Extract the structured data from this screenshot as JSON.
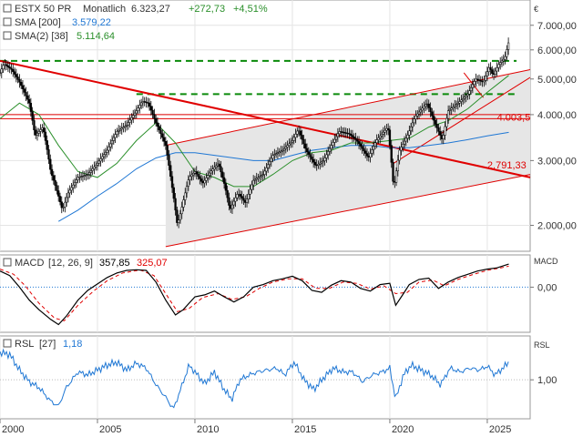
{
  "colors": {
    "price": "#000000",
    "sma200": "#1f77d4",
    "sma38": "#2a8f2a",
    "trend": "#e00000",
    "support": "#0a8a0a",
    "macd": "#000000",
    "signal": "#e00000",
    "rsl": "#1f77d4",
    "pos": "#2a8f2a",
    "neg": "#e00000"
  },
  "chart_data": [
    {
      "type": "candlestick",
      "title": "ESTX 50 PR",
      "period": "Monatlich",
      "last": "6.323,27",
      "change": "+272,73",
      "change_pct": "+4,51%",
      "currency": "€",
      "log_scale": true,
      "ylim": [
        1700,
        8200
      ],
      "x_range": [
        2000.0,
        2027.2
      ],
      "x_ticks": [
        "2000",
        "2005",
        "2010",
        "2015",
        "2020",
        "2025"
      ],
      "y_ticks": [
        "7.000,00",
        "6.000,00",
        "5.000,00",
        "4.000,00",
        "3.000,00",
        "2.000,00"
      ],
      "y_tick_values": [
        7000,
        6000,
        5000,
        4000,
        3000,
        2000
      ],
      "price_path": [
        [
          2000.0,
          5200
        ],
        [
          2000.2,
          5500
        ],
        [
          2000.6,
          5300
        ],
        [
          2001.0,
          4900
        ],
        [
          2001.5,
          4300
        ],
        [
          2001.8,
          3500
        ],
        [
          2002.2,
          3700
        ],
        [
          2002.6,
          2800
        ],
        [
          2002.9,
          2500
        ],
        [
          2003.2,
          2200
        ],
        [
          2003.5,
          2450
        ],
        [
          2004.0,
          2700
        ],
        [
          2004.5,
          2750
        ],
        [
          2005.0,
          2950
        ],
        [
          2005.5,
          3200
        ],
        [
          2006.0,
          3600
        ],
        [
          2006.5,
          3750
        ],
        [
          2007.0,
          4100
        ],
        [
          2007.3,
          4350
        ],
        [
          2007.6,
          4300
        ],
        [
          2008.0,
          3800
        ],
        [
          2008.5,
          3300
        ],
        [
          2008.8,
          2600
        ],
        [
          2009.1,
          2000
        ],
        [
          2009.3,
          2200
        ],
        [
          2009.7,
          2700
        ],
        [
          2010.0,
          2800
        ],
        [
          2010.4,
          2600
        ],
        [
          2010.8,
          2800
        ],
        [
          2011.2,
          2950
        ],
        [
          2011.5,
          2600
        ],
        [
          2011.8,
          2200
        ],
        [
          2012.2,
          2450
        ],
        [
          2012.6,
          2300
        ],
        [
          2013.0,
          2650
        ],
        [
          2013.5,
          2750
        ],
        [
          2014.0,
          3100
        ],
        [
          2014.5,
          3200
        ],
        [
          2015.0,
          3400
        ],
        [
          2015.3,
          3650
        ],
        [
          2015.7,
          3200
        ],
        [
          2016.2,
          2900
        ],
        [
          2016.6,
          3000
        ],
        [
          2017.0,
          3300
        ],
        [
          2017.4,
          3600
        ],
        [
          2017.9,
          3550
        ],
        [
          2018.3,
          3400
        ],
        [
          2018.9,
          3050
        ],
        [
          2019.3,
          3400
        ],
        [
          2019.9,
          3700
        ],
        [
          2020.2,
          2500
        ],
        [
          2020.5,
          3200
        ],
        [
          2020.9,
          3500
        ],
        [
          2021.3,
          3950
        ],
        [
          2021.9,
          4300
        ],
        [
          2022.3,
          3800
        ],
        [
          2022.7,
          3400
        ],
        [
          2023.0,
          4100
        ],
        [
          2023.5,
          4300
        ],
        [
          2024.0,
          4550
        ],
        [
          2024.4,
          5000
        ],
        [
          2024.8,
          4900
        ],
        [
          2025.1,
          5400
        ],
        [
          2025.3,
          5100
        ],
        [
          2025.6,
          5500
        ],
        [
          2025.9,
          5700
        ],
        [
          2026.1,
          6323
        ]
      ],
      "sma200": {
        "name": "SMA [200]",
        "last": "3.579,22",
        "points": [
          [
            2003.0,
            2050
          ],
          [
            2004.0,
            2200
          ],
          [
            2005.0,
            2400
          ],
          [
            2006.0,
            2600
          ],
          [
            2007.0,
            2850
          ],
          [
            2008.0,
            3050
          ],
          [
            2009.0,
            3150
          ],
          [
            2010.0,
            3150
          ],
          [
            2011.0,
            3100
          ],
          [
            2012.0,
            3050
          ],
          [
            2013.0,
            3000
          ],
          [
            2014.0,
            3000
          ],
          [
            2015.0,
            3100
          ],
          [
            2016.0,
            3200
          ],
          [
            2017.0,
            3250
          ],
          [
            2018.0,
            3300
          ],
          [
            2019.0,
            3300
          ],
          [
            2020.0,
            3250
          ],
          [
            2021.0,
            3250
          ],
          [
            2022.0,
            3300
          ],
          [
            2023.0,
            3350
          ],
          [
            2024.0,
            3420
          ],
          [
            2025.0,
            3500
          ],
          [
            2026.1,
            3579
          ]
        ]
      },
      "sma38": {
        "name": "SMA(2) [38]",
        "last": "5.114,64",
        "points": [
          [
            2000.0,
            3900
          ],
          [
            2001.0,
            4300
          ],
          [
            2002.0,
            4000
          ],
          [
            2003.0,
            3300
          ],
          [
            2004.0,
            2800
          ],
          [
            2005.0,
            2700
          ],
          [
            2006.0,
            2950
          ],
          [
            2007.0,
            3400
          ],
          [
            2008.0,
            3800
          ],
          [
            2009.0,
            3350
          ],
          [
            2010.0,
            2800
          ],
          [
            2011.0,
            2700
          ],
          [
            2012.0,
            2550
          ],
          [
            2013.0,
            2550
          ],
          [
            2014.0,
            2750
          ],
          [
            2015.0,
            3000
          ],
          [
            2016.0,
            3150
          ],
          [
            2017.0,
            3200
          ],
          [
            2018.0,
            3350
          ],
          [
            2019.0,
            3350
          ],
          [
            2020.0,
            3400
          ],
          [
            2021.0,
            3450
          ],
          [
            2022.0,
            3700
          ],
          [
            2023.0,
            3850
          ],
          [
            2024.0,
            4150
          ],
          [
            2025.0,
            4600
          ],
          [
            2026.1,
            5115
          ]
        ]
      },
      "horizontal_lines": [
        {
          "value": 5600,
          "style": "dashed",
          "color": "support",
          "x_from": 2000.0,
          "x_to": 2026.5
        },
        {
          "value": 4550,
          "style": "dashed",
          "color": "support",
          "x_from": 2007.0,
          "x_to": 2026.5
        },
        {
          "value": 4000,
          "style": "solid",
          "color": "trend",
          "x_from": 2000.0,
          "x_to": 2027.2
        },
        {
          "value": 3900,
          "style": "solid",
          "color": "trend",
          "x_from": 2000.0,
          "x_to": 2027.2
        }
      ],
      "trend_lines": [
        {
          "from": [
            2000.0,
            5600
          ],
          "to": [
            2027.2,
            2700
          ],
          "width": 2
        },
        {
          "from": [
            2008.5,
            3300
          ],
          "to": [
            2027.2,
            5300
          ],
          "width": 1
        },
        {
          "from": [
            2008.5,
            1750
          ],
          "to": [
            2027.2,
            2750
          ],
          "width": 1
        },
        {
          "from": [
            2020.2,
            2950
          ],
          "to": [
            2027.2,
            5050
          ],
          "width": 1
        },
        {
          "from": [
            2023.8,
            5200
          ],
          "to": [
            2024.8,
            4450
          ],
          "width": 1
        }
      ],
      "channel": {
        "x_from": 2008.5,
        "x_to": 2027.2,
        "upper": [
          3300,
          5300
        ],
        "lower": [
          1750,
          2750
        ]
      },
      "annotations": [
        {
          "text": "4.003,5",
          "x": 2025.5,
          "y": 3850
        },
        {
          "text": "2.791,33",
          "x": 2025.0,
          "y": 2860
        }
      ]
    },
    {
      "type": "line",
      "title": "MACD",
      "params": "[12, 26, 9]",
      "macd_last": "357,85",
      "signal_last": "325,07",
      "y_ticks": [
        "MACD",
        "0,00"
      ],
      "y_tick_values": [
        0
      ],
      "ylim": [
        -700,
        500
      ],
      "macd": [
        [
          2000.0,
          250
        ],
        [
          2000.5,
          180
        ],
        [
          2001.0,
          0
        ],
        [
          2001.5,
          -200
        ],
        [
          2002.0,
          -350
        ],
        [
          2002.6,
          -500
        ],
        [
          2003.0,
          -580
        ],
        [
          2003.4,
          -450
        ],
        [
          2004.0,
          -200
        ],
        [
          2004.5,
          -50
        ],
        [
          2005.0,
          50
        ],
        [
          2005.5,
          150
        ],
        [
          2006.0,
          220
        ],
        [
          2006.5,
          260
        ],
        [
          2007.0,
          270
        ],
        [
          2007.5,
          260
        ],
        [
          2008.0,
          80
        ],
        [
          2008.5,
          -200
        ],
        [
          2009.0,
          -430
        ],
        [
          2009.4,
          -350
        ],
        [
          2010.0,
          -150
        ],
        [
          2010.5,
          -120
        ],
        [
          2011.0,
          -60
        ],
        [
          2011.5,
          -150
        ],
        [
          2012.0,
          -230
        ],
        [
          2012.5,
          -150
        ],
        [
          2013.0,
          0
        ],
        [
          2013.5,
          40
        ],
        [
          2014.0,
          100
        ],
        [
          2014.5,
          130
        ],
        [
          2015.0,
          170
        ],
        [
          2015.5,
          100
        ],
        [
          2016.0,
          -50
        ],
        [
          2016.5,
          -80
        ],
        [
          2017.0,
          30
        ],
        [
          2017.5,
          100
        ],
        [
          2018.0,
          80
        ],
        [
          2018.5,
          -20
        ],
        [
          2019.0,
          -60
        ],
        [
          2019.5,
          40
        ],
        [
          2020.0,
          60
        ],
        [
          2020.3,
          -280
        ],
        [
          2020.7,
          -100
        ],
        [
          2021.0,
          40
        ],
        [
          2021.5,
          120
        ],
        [
          2022.0,
          140
        ],
        [
          2022.5,
          -20
        ],
        [
          2023.0,
          80
        ],
        [
          2023.5,
          150
        ],
        [
          2024.0,
          200
        ],
        [
          2024.5,
          250
        ],
        [
          2025.0,
          280
        ],
        [
          2025.5,
          300
        ],
        [
          2026.1,
          358
        ]
      ],
      "signal": [
        [
          2000.0,
          280
        ],
        [
          2000.7,
          200
        ],
        [
          2001.3,
          20
        ],
        [
          2002.0,
          -250
        ],
        [
          2002.8,
          -480
        ],
        [
          2003.3,
          -520
        ],
        [
          2004.0,
          -280
        ],
        [
          2004.8,
          -60
        ],
        [
          2005.5,
          100
        ],
        [
          2006.3,
          220
        ],
        [
          2007.2,
          265
        ],
        [
          2007.9,
          180
        ],
        [
          2008.5,
          -100
        ],
        [
          2009.1,
          -380
        ],
        [
          2009.7,
          -330
        ],
        [
          2010.4,
          -160
        ],
        [
          2011.2,
          -100
        ],
        [
          2011.9,
          -190
        ],
        [
          2012.6,
          -150
        ],
        [
          2013.3,
          -20
        ],
        [
          2014.0,
          80
        ],
        [
          2014.8,
          130
        ],
        [
          2015.5,
          130
        ],
        [
          2016.2,
          -20
        ],
        [
          2016.9,
          -20
        ],
        [
          2017.6,
          80
        ],
        [
          2018.3,
          60
        ],
        [
          2019.0,
          -30
        ],
        [
          2019.7,
          20
        ],
        [
          2020.3,
          -100
        ],
        [
          2020.9,
          -80
        ],
        [
          2021.5,
          80
        ],
        [
          2022.2,
          110
        ],
        [
          2022.8,
          20
        ],
        [
          2023.5,
          120
        ],
        [
          2024.3,
          200
        ],
        [
          2025.0,
          260
        ],
        [
          2025.7,
          300
        ],
        [
          2026.1,
          325
        ]
      ]
    },
    {
      "type": "line",
      "title": "RSL",
      "params": "[27]",
      "last": "1,18",
      "y_ticks": [
        "RSL",
        "1,00"
      ],
      "y_tick_values": [
        1.0
      ],
      "ylim": [
        0.6,
        1.45
      ],
      "values": [
        [
          2000.0,
          1.28
        ],
        [
          2000.5,
          1.26
        ],
        [
          2001.0,
          1.1
        ],
        [
          2001.5,
          0.98
        ],
        [
          2002.0,
          0.92
        ],
        [
          2002.6,
          0.78
        ],
        [
          2003.0,
          0.73
        ],
        [
          2003.4,
          0.92
        ],
        [
          2004.0,
          1.08
        ],
        [
          2004.5,
          1.05
        ],
        [
          2005.0,
          1.1
        ],
        [
          2005.5,
          1.15
        ],
        [
          2006.0,
          1.18
        ],
        [
          2006.5,
          1.1
        ],
        [
          2007.0,
          1.17
        ],
        [
          2007.5,
          1.12
        ],
        [
          2008.0,
          0.95
        ],
        [
          2008.5,
          0.82
        ],
        [
          2008.9,
          0.7
        ],
        [
          2009.3,
          0.92
        ],
        [
          2009.7,
          1.15
        ],
        [
          2010.0,
          1.08
        ],
        [
          2010.5,
          0.96
        ],
        [
          2011.0,
          1.08
        ],
        [
          2011.5,
          0.9
        ],
        [
          2011.9,
          0.8
        ],
        [
          2012.3,
          1.0
        ],
        [
          2012.8,
          1.05
        ],
        [
          2013.2,
          1.08
        ],
        [
          2013.7,
          1.1
        ],
        [
          2014.2,
          1.12
        ],
        [
          2014.6,
          1.05
        ],
        [
          2015.1,
          1.18
        ],
        [
          2015.6,
          1.0
        ],
        [
          2016.1,
          0.9
        ],
        [
          2016.6,
          1.02
        ],
        [
          2017.1,
          1.12
        ],
        [
          2017.6,
          1.08
        ],
        [
          2018.1,
          1.08
        ],
        [
          2018.6,
          0.98
        ],
        [
          2019.1,
          1.05
        ],
        [
          2019.6,
          1.08
        ],
        [
          2020.0,
          1.12
        ],
        [
          2020.3,
          0.8
        ],
        [
          2020.7,
          1.05
        ],
        [
          2021.1,
          1.15
        ],
        [
          2021.6,
          1.1
        ],
        [
          2022.1,
          1.05
        ],
        [
          2022.6,
          0.95
        ],
        [
          2023.1,
          1.12
        ],
        [
          2023.6,
          1.08
        ],
        [
          2024.1,
          1.12
        ],
        [
          2024.6,
          1.1
        ],
        [
          2025.0,
          1.14
        ],
        [
          2025.4,
          1.05
        ],
        [
          2025.8,
          1.12
        ],
        [
          2026.1,
          1.18
        ]
      ]
    }
  ]
}
